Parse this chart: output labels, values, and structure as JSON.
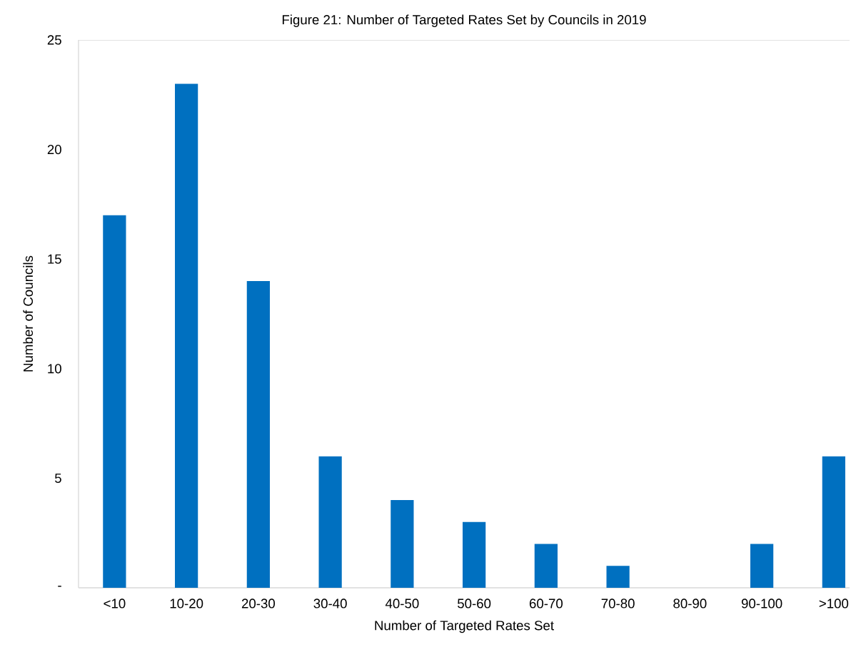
{
  "chart_data": {
    "type": "bar",
    "title": "Figure 21: Number of Targeted Rates Set by Councils in 2019",
    "xlabel": "Number of Targeted Rates Set",
    "ylabel": "Number of Councils",
    "categories": [
      "<10",
      "10-20",
      "20-30",
      "30-40",
      "40-50",
      "50-60",
      "60-70",
      "70-80",
      "80-90",
      "90-100",
      ">100"
    ],
    "values": [
      17,
      23,
      14,
      6,
      4,
      3,
      2,
      1,
      0,
      2,
      6
    ],
    "color": "#0070c0",
    "ylim": [
      0,
      25
    ],
    "yticks": [
      {
        "value": 0,
        "label": "-"
      },
      5,
      10,
      15,
      20,
      25
    ],
    "grid": false
  }
}
